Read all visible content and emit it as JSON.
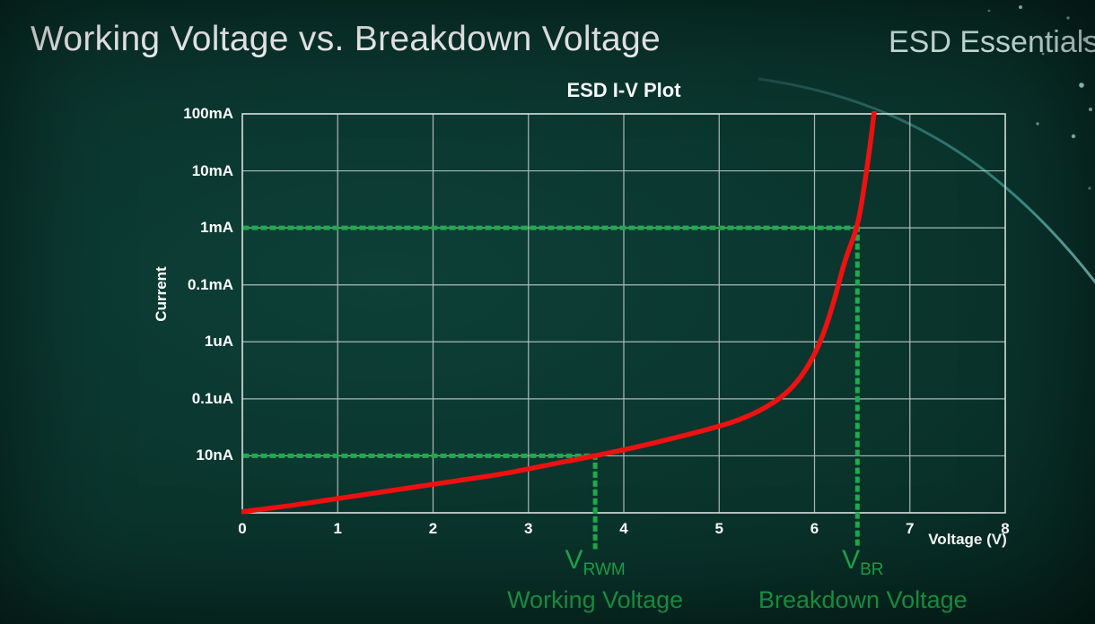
{
  "page": {
    "title": "Working Voltage vs. Breakdown Voltage",
    "brand": "ESD Essentials"
  },
  "chart_data": {
    "type": "line",
    "title": "ESD I-V Plot",
    "xlabel": "Voltage (V)",
    "ylabel": "Current",
    "x_ticks": [
      "0",
      "1",
      "2",
      "3",
      "4",
      "5",
      "6",
      "7",
      "8"
    ],
    "y_ticks": [
      "100mA",
      "10mA",
      "1mA",
      "0.1mA",
      "1uA",
      "0.1uA",
      "10nA"
    ],
    "xlim": [
      0,
      8
    ],
    "y_scale": "log (one gridline per labeled decade, bottom axis unlabeled)",
    "grid": true,
    "colors": {
      "curve": "#ee1111",
      "annotation": "#1faa4e",
      "grid": "#c7d0cd",
      "text": "#ffffff"
    },
    "series": [
      {
        "name": "ESD device I-V curve",
        "color": "#ee1111",
        "x_unit": "V",
        "y_unit": "gridline level (0 = bottom axis, 1 = 10nA, 5 = 1mA, 7 = 100mA)",
        "points": [
          [
            0,
            0.02
          ],
          [
            0.4,
            0.1
          ],
          [
            0.8,
            0.2
          ],
          [
            1.2,
            0.3
          ],
          [
            1.6,
            0.4
          ],
          [
            2.0,
            0.5
          ],
          [
            2.4,
            0.6
          ],
          [
            2.8,
            0.7
          ],
          [
            3.2,
            0.84
          ],
          [
            3.7,
            1.0
          ],
          [
            4.1,
            1.14
          ],
          [
            4.5,
            1.3
          ],
          [
            4.9,
            1.47
          ],
          [
            5.2,
            1.62
          ],
          [
            5.5,
            1.85
          ],
          [
            5.75,
            2.15
          ],
          [
            5.95,
            2.6
          ],
          [
            6.1,
            3.15
          ],
          [
            6.22,
            3.8
          ],
          [
            6.32,
            4.45
          ],
          [
            6.45,
            5.0
          ],
          [
            6.52,
            5.7
          ],
          [
            6.58,
            6.4
          ],
          [
            6.63,
            7.1
          ]
        ]
      }
    ],
    "annotations": {
      "color": "#1faa4e",
      "working_voltage": {
        "v": 3.7,
        "at_current": "10nA",
        "symbol": "V",
        "symbol_sub": "RWM",
        "caption": "Working Voltage"
      },
      "breakdown_voltage": {
        "v": 6.45,
        "at_current": "1mA",
        "symbol": "V",
        "symbol_sub": "BR",
        "caption": "Breakdown Voltage"
      }
    }
  }
}
